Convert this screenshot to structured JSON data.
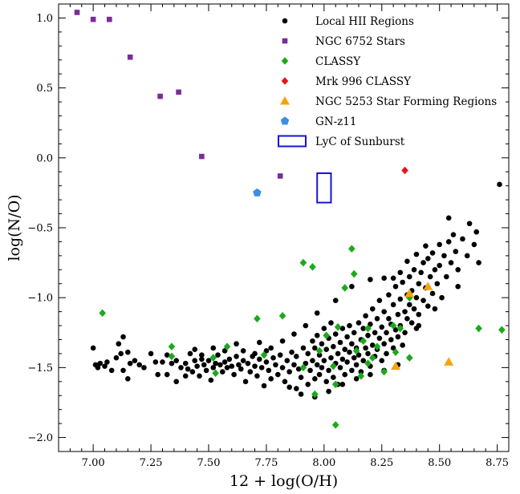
{
  "chart_data": {
    "type": "scatter",
    "title": "",
    "xlabel": "12 + log(O/H)",
    "ylabel": "log(N/O)",
    "xlim": [
      6.85,
      8.8
    ],
    "ylim": [
      -2.1,
      1.1
    ],
    "xticks": [
      7.0,
      7.25,
      7.5,
      7.75,
      8.0,
      8.25,
      8.5,
      8.75
    ],
    "xtick_labels": [
      "7.00",
      "7.25",
      "7.50",
      "7.75",
      "8.00",
      "8.25",
      "8.50",
      "8.75"
    ],
    "yticks": [
      -2.0,
      -1.5,
      -1.0,
      -0.5,
      0.0,
      0.5,
      1.0
    ],
    "ytick_labels": [
      "−2.0",
      "−1.5",
      "−1.0",
      "−0.5",
      "0.0",
      "0.5",
      "1.0"
    ],
    "grid": false,
    "legend_position": "top-right",
    "series": [
      {
        "name": "Local HII Regions",
        "marker": "circle",
        "color": "#000000",
        "points": [
          [
            7.0,
            -1.36
          ],
          [
            7.01,
            -1.48
          ],
          [
            7.02,
            -1.5
          ],
          [
            7.03,
            -1.47
          ],
          [
            7.05,
            -1.49
          ],
          [
            7.06,
            -1.46
          ],
          [
            7.08,
            -1.52
          ],
          [
            7.1,
            -1.43
          ],
          [
            7.11,
            -1.33
          ],
          [
            7.12,
            -1.4
          ],
          [
            7.13,
            -1.28
          ],
          [
            7.13,
            -1.52
          ],
          [
            7.15,
            -1.39
          ],
          [
            7.15,
            -1.58
          ],
          [
            7.16,
            -1.47
          ],
          [
            7.18,
            -1.45
          ],
          [
            7.2,
            -1.48
          ],
          [
            7.22,
            -1.5
          ],
          [
            7.25,
            -1.4
          ],
          [
            7.27,
            -1.46
          ],
          [
            7.28,
            -1.55
          ],
          [
            7.3,
            -1.46
          ],
          [
            7.32,
            -1.41
          ],
          [
            7.34,
            -1.47
          ],
          [
            7.36,
            -1.45
          ],
          [
            7.38,
            -1.5
          ],
          [
            7.4,
            -1.47
          ],
          [
            7.41,
            -1.51
          ],
          [
            7.42,
            -1.4
          ],
          [
            7.43,
            -1.53
          ],
          [
            7.44,
            -1.45
          ],
          [
            7.45,
            -1.49
          ],
          [
            7.46,
            -1.56
          ],
          [
            7.47,
            -1.44
          ],
          [
            7.48,
            -1.48
          ],
          [
            7.49,
            -1.52
          ],
          [
            7.5,
            -1.45
          ],
          [
            7.51,
            -1.59
          ],
          [
            7.52,
            -1.5
          ],
          [
            7.53,
            -1.47
          ],
          [
            7.54,
            -1.41
          ],
          [
            7.55,
            -1.48
          ],
          [
            7.56,
            -1.53
          ],
          [
            7.57,
            -1.46
          ],
          [
            7.58,
            -1.5
          ],
          [
            7.59,
            -1.44
          ],
          [
            7.6,
            -1.49
          ],
          [
            7.61,
            -1.55
          ],
          [
            7.62,
            -1.42
          ],
          [
            7.63,
            -1.48
          ],
          [
            7.64,
            -1.51
          ],
          [
            7.65,
            -1.45
          ],
          [
            7.66,
            -1.6
          ],
          [
            7.67,
            -1.47
          ],
          [
            7.68,
            -1.53
          ],
          [
            7.69,
            -1.42
          ],
          [
            7.7,
            -1.49
          ],
          [
            7.71,
            -1.56
          ],
          [
            7.72,
            -1.44
          ],
          [
            7.73,
            -1.5
          ],
          [
            7.74,
            -1.63
          ],
          [
            7.75,
            -1.46
          ],
          [
            7.75,
            -1.38
          ],
          [
            7.76,
            -1.52
          ],
          [
            7.77,
            -1.58
          ],
          [
            7.78,
            -1.43
          ],
          [
            7.79,
            -1.48
          ],
          [
            7.8,
            -1.55
          ],
          [
            7.81,
            -1.41
          ],
          [
            7.82,
            -1.5
          ],
          [
            7.83,
            -1.6
          ],
          [
            7.84,
            -1.45
          ],
          [
            7.85,
            -1.53
          ],
          [
            7.86,
            -1.39
          ],
          [
            7.87,
            -1.48
          ],
          [
            7.88,
            -1.65
          ],
          [
            7.88,
            -1.42
          ],
          [
            7.89,
            -1.51
          ],
          [
            7.9,
            -1.57
          ],
          [
            7.91,
            -1.36
          ],
          [
            7.92,
            -1.47
          ],
          [
            7.93,
            -1.62
          ],
          [
            7.93,
            -1.4
          ],
          [
            7.94,
            -1.52
          ],
          [
            7.95,
            -1.31
          ],
          [
            7.95,
            -1.45
          ],
          [
            7.96,
            -1.58
          ],
          [
            7.96,
            -1.36
          ],
          [
            7.97,
            -1.48
          ],
          [
            7.97,
            -1.27
          ],
          [
            7.98,
            -1.55
          ],
          [
            7.98,
            -1.41
          ],
          [
            7.99,
            -1.33
          ],
          [
            7.99,
            -1.5
          ],
          [
            8.0,
            -1.22
          ],
          [
            8.0,
            -1.45
          ],
          [
            8.01,
            -1.6
          ],
          [
            8.01,
            -1.37
          ],
          [
            8.02,
            -1.29
          ],
          [
            8.02,
            -1.52
          ],
          [
            8.03,
            -1.43
          ],
          [
            8.03,
            -1.18
          ],
          [
            8.04,
            -1.35
          ],
          [
            8.04,
            -1.57
          ],
          [
            8.05,
            -1.47
          ],
          [
            8.05,
            -1.26
          ],
          [
            8.06,
            -1.4
          ],
          [
            8.06,
            -1.62
          ],
          [
            8.07,
            -1.32
          ],
          [
            8.07,
            -1.5
          ],
          [
            8.08,
            -1.22
          ],
          [
            8.08,
            -1.44
          ],
          [
            8.09,
            -1.37
          ],
          [
            8.09,
            -1.55
          ],
          [
            8.1,
            -1.28
          ],
          [
            8.1,
            -1.46
          ],
          [
            8.11,
            -1.39
          ],
          [
            8.11,
            -1.2
          ],
          [
            8.12,
            -1.52
          ],
          [
            8.12,
            -1.33
          ],
          [
            8.13,
            -1.43
          ],
          [
            8.13,
            -1.25
          ],
          [
            8.14,
            -1.48
          ],
          [
            8.14,
            -1.36
          ],
          [
            8.15,
            -1.18
          ],
          [
            8.15,
            -1.41
          ],
          [
            8.16,
            -1.3
          ],
          [
            8.16,
            -1.53
          ],
          [
            8.17,
            -1.22
          ],
          [
            8.17,
            -1.45
          ],
          [
            8.18,
            -1.36
          ],
          [
            8.18,
            -1.13
          ],
          [
            8.19,
            -1.4
          ],
          [
            8.19,
            -1.27
          ],
          [
            8.2,
            -1.49
          ],
          [
            8.2,
            -1.19
          ],
          [
            8.21,
            -1.34
          ],
          [
            8.21,
            -1.08
          ],
          [
            8.22,
            -1.42
          ],
          [
            8.22,
            -1.25
          ],
          [
            8.23,
            -1.15
          ],
          [
            8.23,
            -1.37
          ],
          [
            8.24,
            -1.29
          ],
          [
            8.24,
            -1.02
          ],
          [
            8.25,
            -1.45
          ],
          [
            8.25,
            -1.21
          ],
          [
            8.26,
            -1.33
          ],
          [
            8.26,
            -1.1
          ],
          [
            8.27,
            -1.25
          ],
          [
            8.27,
            -1.4
          ],
          [
            8.28,
            -1.15
          ],
          [
            8.28,
            -0.98
          ],
          [
            8.29,
            -1.3
          ],
          [
            8.29,
            -1.19
          ],
          [
            8.3,
            -1.05
          ],
          [
            8.3,
            -1.36
          ],
          [
            8.31,
            -1.23
          ],
          [
            8.31,
            -0.92
          ],
          [
            8.32,
            -1.12
          ],
          [
            8.32,
            -1.28
          ],
          [
            8.33,
            -1.01
          ],
          [
            8.33,
            -1.2
          ],
          [
            8.34,
            -1.34
          ],
          [
            8.34,
            -0.89
          ],
          [
            8.35,
            -1.1
          ],
          [
            8.35,
            -1.25
          ],
          [
            8.36,
            -0.98
          ],
          [
            8.36,
            -1.15
          ],
          [
            8.37,
            -1.05
          ],
          [
            8.37,
            -0.85
          ],
          [
            8.38,
            -1.18
          ],
          [
            8.38,
            -0.95
          ],
          [
            8.39,
            -1.08
          ],
          [
            8.39,
            -0.8
          ],
          [
            8.4,
            -1.0
          ],
          [
            8.4,
            -1.22
          ],
          [
            8.41,
            -0.9
          ],
          [
            8.41,
            -1.12
          ],
          [
            8.42,
            -0.82
          ],
          [
            8.43,
            -1.02
          ],
          [
            8.43,
            -0.75
          ],
          [
            8.44,
            -0.93
          ],
          [
            8.45,
            -1.06
          ],
          [
            8.45,
            -0.72
          ],
          [
            8.46,
            -0.85
          ],
          [
            8.47,
            -0.97
          ],
          [
            8.47,
            -0.68
          ],
          [
            8.48,
            -0.8
          ],
          [
            8.49,
            -0.9
          ],
          [
            8.5,
            -0.62
          ],
          [
            8.5,
            -0.77
          ],
          [
            8.51,
            -1.0
          ],
          [
            8.52,
            -0.7
          ],
          [
            8.53,
            -0.85
          ],
          [
            8.54,
            -0.6
          ],
          [
            8.55,
            -0.75
          ],
          [
            8.56,
            -0.55
          ],
          [
            8.57,
            -0.67
          ],
          [
            8.58,
            -0.8
          ],
          [
            8.6,
            -0.58
          ],
          [
            8.62,
            -0.7
          ],
          [
            8.63,
            -0.47
          ],
          [
            8.65,
            -0.62
          ],
          [
            8.66,
            -0.53
          ],
          [
            8.67,
            -0.75
          ],
          [
            8.54,
            -0.43
          ],
          [
            8.76,
            -0.19
          ],
          [
            8.58,
            -0.92
          ],
          [
            8.48,
            -1.08
          ],
          [
            8.41,
            -1.2
          ],
          [
            8.44,
            -0.63
          ],
          [
            8.4,
            -0.69
          ],
          [
            8.36,
            -0.74
          ],
          [
            8.33,
            -0.82
          ],
          [
            8.3,
            -0.86
          ],
          [
            8.26,
            -0.86
          ],
          [
            8.2,
            -0.87
          ],
          [
            8.12,
            -0.92
          ],
          [
            8.05,
            -1.02
          ],
          [
            7.97,
            -1.11
          ],
          [
            7.92,
            -1.2
          ],
          [
            7.87,
            -1.26
          ],
          [
            7.82,
            -1.31
          ],
          [
            7.77,
            -1.36
          ],
          [
            7.72,
            -1.32
          ],
          [
            7.85,
            -1.64
          ],
          [
            7.9,
            -1.69
          ],
          [
            7.96,
            -1.71
          ],
          [
            8.02,
            -1.67
          ],
          [
            8.08,
            -1.62
          ],
          [
            8.14,
            -1.58
          ],
          [
            8.2,
            -1.55
          ],
          [
            8.26,
            -1.52
          ],
          [
            8.32,
            -1.48
          ],
          [
            8.37,
            -1.43
          ],
          [
            7.62,
            -1.33
          ],
          [
            7.57,
            -1.38
          ],
          [
            7.52,
            -1.36
          ],
          [
            7.47,
            -1.41
          ],
          [
            7.44,
            -1.37
          ],
          [
            7.4,
            -1.56
          ],
          [
            7.36,
            -1.6
          ],
          [
            7.32,
            -1.55
          ],
          [
            7.65,
            -1.38
          ],
          [
            7.7,
            -1.4
          ]
        ]
      },
      {
        "name": "NGC 6752 Stars",
        "marker": "square",
        "color": "#7B2B9A",
        "points": [
          [
            6.93,
            1.04
          ],
          [
            7.0,
            0.99
          ],
          [
            7.07,
            0.99
          ],
          [
            7.16,
            0.72
          ],
          [
            7.29,
            0.44
          ],
          [
            7.37,
            0.47
          ],
          [
            7.47,
            0.01
          ],
          [
            7.81,
            -0.13
          ]
        ]
      },
      {
        "name": "CLASSY",
        "marker": "diamond",
        "color": "#1BAA1B",
        "points": [
          [
            7.04,
            -1.11
          ],
          [
            7.34,
            -1.35
          ],
          [
            7.34,
            -1.42
          ],
          [
            7.52,
            -1.43
          ],
          [
            7.53,
            -1.54
          ],
          [
            7.58,
            -1.35
          ],
          [
            7.71,
            -1.15
          ],
          [
            7.74,
            -1.41
          ],
          [
            7.82,
            -1.13
          ],
          [
            7.91,
            -0.75
          ],
          [
            7.91,
            -1.5
          ],
          [
            7.95,
            -0.78
          ],
          [
            7.96,
            -1.69
          ],
          [
            7.98,
            -1.38
          ],
          [
            8.01,
            -1.27
          ],
          [
            8.04,
            -1.49
          ],
          [
            8.05,
            -1.62
          ],
          [
            8.05,
            -1.91
          ],
          [
            8.06,
            -1.21
          ],
          [
            8.09,
            -0.93
          ],
          [
            8.12,
            -0.65
          ],
          [
            8.13,
            -0.83
          ],
          [
            8.14,
            -1.38
          ],
          [
            8.16,
            -1.56
          ],
          [
            8.17,
            -1.31
          ],
          [
            8.19,
            -1.22
          ],
          [
            8.19,
            -1.47
          ],
          [
            8.21,
            -1.43
          ],
          [
            8.23,
            -1.35
          ],
          [
            8.26,
            -1.53
          ],
          [
            8.3,
            -1.2
          ],
          [
            8.31,
            -1.39
          ],
          [
            8.33,
            -1.22
          ],
          [
            8.37,
            -1.43
          ],
          [
            8.37,
            -1.0
          ],
          [
            8.67,
            -1.22
          ],
          [
            8.77,
            -1.23
          ]
        ]
      },
      {
        "name": "Mrk 996 CLASSY",
        "marker": "diamond",
        "color": "#E8141A",
        "points": [
          [
            8.35,
            -0.09
          ]
        ]
      },
      {
        "name": "NGC 5253 Star Forming Regions",
        "marker": "triangle",
        "color": "#F5A315",
        "points": [
          [
            8.31,
            -1.49
          ],
          [
            8.37,
            -0.97
          ],
          [
            8.45,
            -0.92
          ],
          [
            8.54,
            -1.46
          ]
        ]
      },
      {
        "name": "GN-z11",
        "marker": "pentagon",
        "color": "#3A8FDE",
        "points": [
          [
            7.71,
            -0.25
          ]
        ]
      },
      {
        "name": "LyC of Sunburst",
        "marker": "rectangle",
        "color": "#1414D6",
        "rect": {
          "x": [
            7.97,
            8.03
          ],
          "y": [
            -0.32,
            -0.11
          ]
        }
      }
    ]
  }
}
